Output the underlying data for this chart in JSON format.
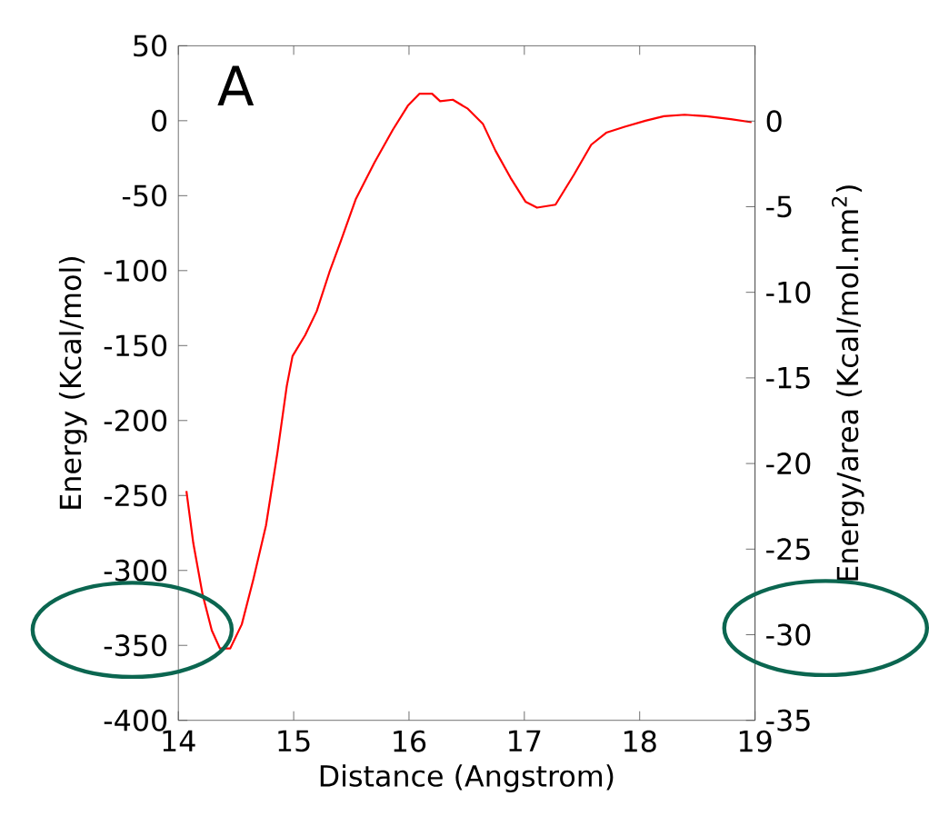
{
  "chart_data": {
    "type": "line",
    "xlabel": "Distance (Angstrom)",
    "ylabel": "Energy (Kcal/mol)",
    "y2label": "Energy/area (Kcal/mol.nm$^{2}$)",
    "annotations": [
      "A"
    ],
    "xlim": [
      14,
      19
    ],
    "xticks": [
      14,
      15,
      16,
      17,
      18,
      19
    ],
    "ylim": [
      -400,
      50
    ],
    "yticks": [
      -400,
      -350,
      -300,
      -250,
      -200,
      -150,
      -100,
      -50,
      0,
      50
    ],
    "y2lim": [
      -35,
      4.4
    ],
    "y2ticks": [
      -35,
      -30,
      -25,
      -20,
      -15,
      -10,
      -5,
      0
    ],
    "grid": false,
    "marker": "none",
    "line_style": "solid",
    "series": [
      {
        "color": "#ff0000",
        "x": [
          14.07,
          14.13,
          14.21,
          14.29,
          14.36,
          14.45,
          14.55,
          14.65,
          14.76,
          14.86,
          14.94,
          14.99,
          15.1,
          15.2,
          15.31,
          15.41,
          15.54,
          15.7,
          15.86,
          15.99,
          16.09,
          16.2,
          16.27,
          16.38,
          16.51,
          16.64,
          16.75,
          16.88,
          17.01,
          17.11,
          17.27,
          17.43,
          17.58,
          17.71,
          17.87,
          18.05,
          18.21,
          18.39,
          18.58,
          18.79,
          18.97
        ],
        "values": [
          -247,
          -282,
          -316,
          -340,
          -352,
          -352,
          -336,
          -306,
          -270,
          -221,
          -177,
          -157,
          -143,
          -127,
          -101,
          -80,
          -52,
          -28,
          -6,
          10,
          18,
          18,
          13,
          14,
          8,
          -2,
          -20,
          -38,
          -54,
          -58,
          -56,
          -36,
          -16,
          -8,
          -4,
          0,
          3,
          4,
          3,
          1,
          -1
        ]
      }
    ]
  }
}
